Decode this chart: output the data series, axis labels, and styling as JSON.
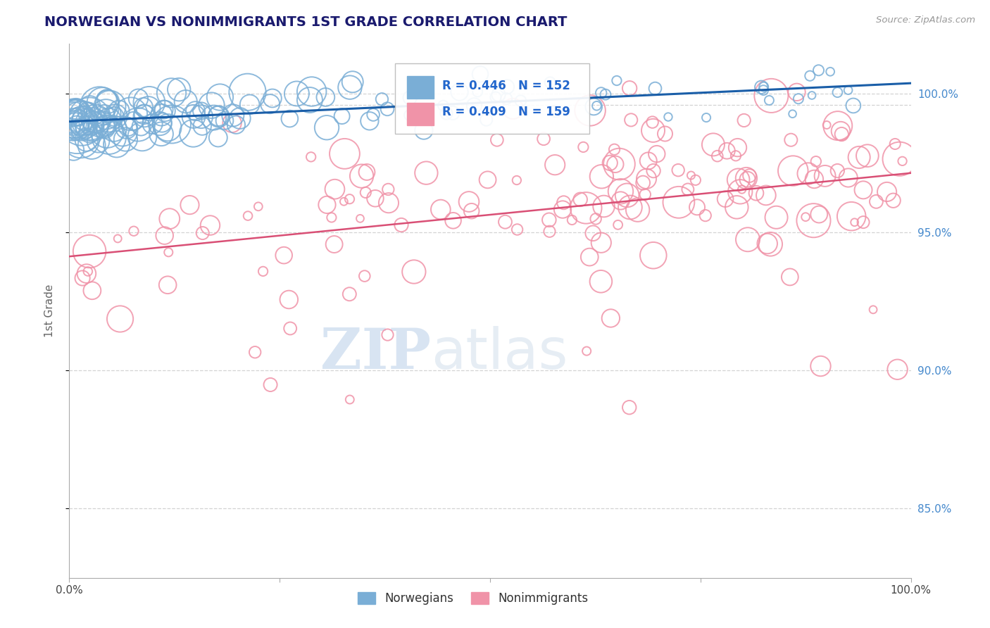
{
  "title": "NORWEGIAN VS NONIMMIGRANTS 1ST GRADE CORRELATION CHART",
  "source": "Source: ZipAtlas.com",
  "ylabel": "1st Grade",
  "xlim": [
    0.0,
    100.0
  ],
  "ylim": [
    82.5,
    101.8
  ],
  "yticks": [
    85.0,
    90.0,
    95.0,
    100.0
  ],
  "ytick_labels": [
    "85.0%",
    "90.0%",
    "95.0%",
    "100.0%"
  ],
  "background_color": "#ffffff",
  "watermark_zip": "ZIP",
  "watermark_atlas": "atlas",
  "legend_r1": "R = 0.446",
  "legend_n1": "N = 152",
  "legend_r2": "R = 0.409",
  "legend_n2": "N = 159",
  "norwegian_color": "#7aaed6",
  "nonimmigrant_color": "#f093a8",
  "norwegian_line_color": "#1a5ea8",
  "nonimmigrant_line_color": "#d94f75",
  "legend_text_color": "#2266cc",
  "title_color": "#1a1a6e",
  "axis_label_color": "#666666",
  "right_axis_color": "#4488cc",
  "grid_color": "#c8c8c8",
  "dashed_line_y": 99.6
}
